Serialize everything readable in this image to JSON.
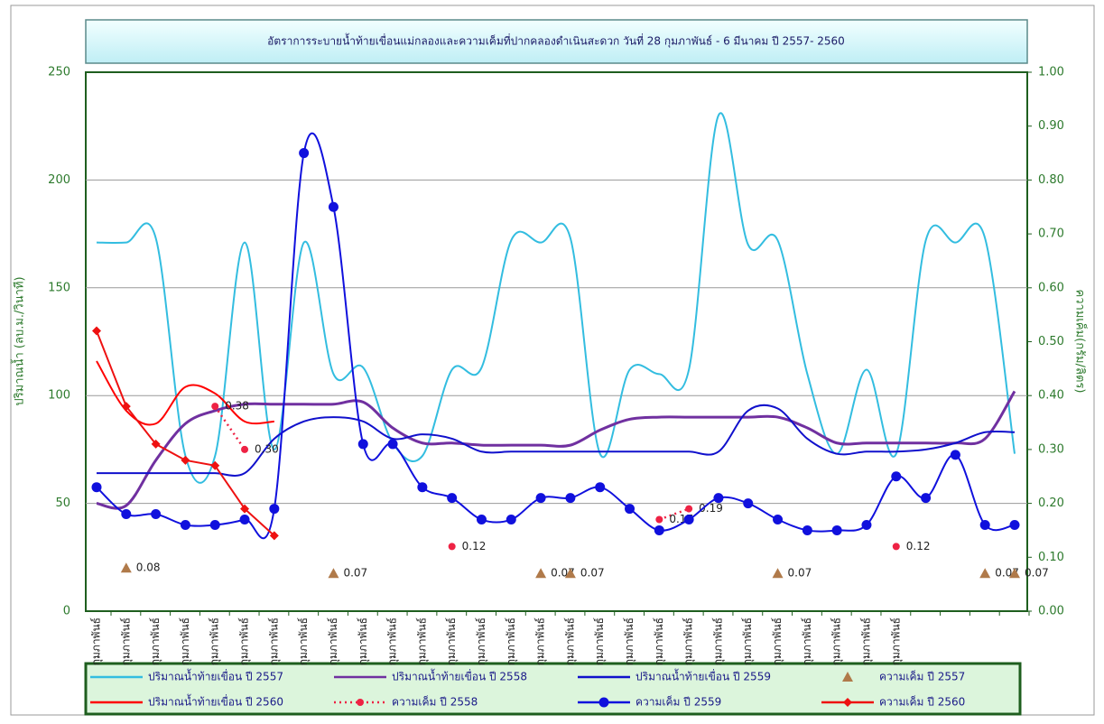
{
  "chart_data": {
    "type": "line",
    "title": "อัตราการระบายน้ำท้ายเขื่อนแม่กลองและความเค็มที่ปากคลองดำเนินสะดวก  วันที่  28  กุมภาพันธ์ - 6 มีนาคม  ปี 2557- 2560",
    "ylabel": "ปริมาณน้ำ (ลบ.ม./วินาที)",
    "y2label": "ความเค็ม(กรัม/ลิตร)",
    "categories": [
      "กุมภาพันธ์",
      "กุมภาพันธ์",
      "กุมภาพันธ์",
      "กุมภาพันธ์",
      "กุมภาพันธ์",
      "กุมภาพันธ์",
      "กุมภาพันธ์",
      "กุมภาพันธ์",
      "กุมภาพันธ์",
      "กุมภาพันธ์",
      "กุมภาพันธ์",
      "กุมภาพันธ์",
      "กุมภาพันธ์",
      "กุมภาพันธ์",
      "กุมภาพันธ์",
      "กุมภาพันธ์",
      "กุมภาพันธ์",
      "กุมภาพันธ์",
      "กุมภาพันธ์",
      "กุมภาพันธ์",
      "กุมภาพันธ์",
      "กุมภาพันธ์",
      "กุมภาพันธ์",
      "กุมภาพันธ์",
      "กุมภาพันธ์",
      "กุมภาพันธ์",
      "กุมภาพันธ์",
      "กุมภาพันธ์",
      null,
      null,
      null,
      null
    ],
    "ylim": [
      0,
      250
    ],
    "yticks": [
      0,
      50,
      100,
      150,
      200,
      250
    ],
    "y2lim": [
      0,
      1
    ],
    "y2ticks": [
      {
        "value": 0,
        "label": "0.00"
      },
      {
        "value": 0.1,
        "label": "0.10"
      },
      {
        "value": 0.2,
        "label": "0.20"
      },
      {
        "value": 0.3,
        "label": "0.30"
      },
      {
        "value": 0.4,
        "label": "0.40"
      },
      {
        "value": 0.5,
        "label": "0.50"
      },
      {
        "value": 0.6,
        "label": "0.60"
      },
      {
        "value": 0.7,
        "label": "0.70"
      },
      {
        "value": 0.8,
        "label": "0.80"
      },
      {
        "value": 0.9,
        "label": "0.90"
      },
      {
        "value": 1,
        "label": "1.00"
      }
    ],
    "grid": true,
    "series": [
      {
        "name": "ปริมาณน้ำท้ายเขื่อน ปี 2557",
        "color": "#33bde0",
        "axis": "y",
        "line": "smooth",
        "marker": "none",
        "values": [
          171,
          171,
          173,
          72,
          72,
          171,
          75,
          171,
          110,
          113,
          78,
          72,
          112,
          113,
          172,
          171,
          173,
          73,
          112,
          110,
          112,
          230,
          170,
          172,
          110,
          73,
          112,
          73,
          172,
          171,
          173,
          73
        ]
      },
      {
        "name": "ปริมาณน้ำท้ายเขื่อน ปี 2558",
        "color": "#7030a0",
        "axis": "y",
        "line": "smooth",
        "marker": "none",
        "values": [
          50,
          49,
          70,
          87,
          93,
          96,
          96,
          96,
          96,
          97,
          85,
          78,
          78,
          77,
          77,
          77,
          77,
          84,
          89,
          90,
          90,
          90,
          90,
          90,
          85,
          78,
          78,
          78,
          78,
          78,
          80,
          102
        ]
      },
      {
        "name": "ปริมาณน้ำท้ายเขื่อน ปี 2559",
        "color": "#1010cc",
        "axis": "y",
        "line": "smooth",
        "marker": "none",
        "values": [
          64,
          64,
          64,
          64,
          64,
          64,
          80,
          88,
          90,
          88,
          80,
          82,
          80,
          74,
          74,
          74,
          74,
          74,
          74,
          74,
          74,
          74,
          93,
          94,
          80,
          73,
          74,
          74,
          75,
          78,
          83,
          83
        ]
      },
      {
        "name": "ความเค็ม ปี 2557",
        "color": "#b07a4a",
        "axis": "y2",
        "line": "none",
        "marker": "triangle",
        "values": [
          null,
          0.08,
          null,
          null,
          null,
          null,
          null,
          null,
          0.07,
          null,
          null,
          null,
          null,
          null,
          null,
          0.07,
          0.07,
          null,
          null,
          null,
          null,
          null,
          null,
          0.07,
          null,
          null,
          null,
          null,
          null,
          null,
          0.07,
          0.07
        ]
      },
      {
        "name": "ปริมาณน้ำท้ายเขื่อน ปี 2560",
        "color": "#ff0000",
        "axis": "y",
        "line": "smooth",
        "marker": "none",
        "values": [
          116,
          93,
          87,
          104,
          101,
          88,
          88,
          null,
          null,
          null,
          null,
          null,
          null,
          null,
          null,
          null,
          null,
          null,
          null,
          null,
          null,
          null,
          null,
          null,
          null,
          null,
          null,
          null,
          null,
          null,
          null,
          null
        ]
      },
      {
        "name": "ความเค็ม ปี 2558",
        "color": "#ee2244",
        "axis": "y2",
        "line": "dotted",
        "marker": "dot",
        "values": [
          null,
          null,
          null,
          null,
          0.38,
          0.3,
          null,
          null,
          null,
          null,
          null,
          null,
          0.12,
          null,
          null,
          null,
          null,
          null,
          null,
          0.17,
          0.19,
          null,
          null,
          null,
          null,
          null,
          null,
          0.12,
          null,
          null,
          null,
          null
        ],
        "value_labels": [
          null,
          null,
          null,
          null,
          "0.38",
          "0.30",
          null,
          null,
          null,
          null,
          null,
          null,
          "0.12",
          null,
          null,
          null,
          null,
          null,
          null,
          "0.17",
          "0.19",
          null,
          null,
          null,
          null,
          null,
          null,
          "0.12",
          null,
          null,
          null,
          null
        ]
      },
      {
        "name": "ความเค็ม ปี 2559",
        "color": "#1010dd",
        "axis": "y2",
        "line": "smooth",
        "marker": "circle",
        "values": [
          0.23,
          0.18,
          0.18,
          0.16,
          0.16,
          0.17,
          0.19,
          0.85,
          0.75,
          0.31,
          0.31,
          0.23,
          0.21,
          0.17,
          0.17,
          0.21,
          0.21,
          0.23,
          0.19,
          0.15,
          0.17,
          0.21,
          0.2,
          0.17,
          0.15,
          0.15,
          0.16,
          0.25,
          0.21,
          0.29,
          0.16,
          0.16
        ]
      },
      {
        "name": "ความเค็ม ปี 2560",
        "color": "#ee1111",
        "axis": "y2",
        "line": "straight",
        "marker": "diamond",
        "values": [
          0.52,
          0.38,
          0.31,
          0.28,
          0.27,
          0.19,
          0.14,
          null,
          null,
          null,
          null,
          null,
          null,
          null,
          null,
          null,
          null,
          null,
          null,
          null,
          null,
          null,
          null,
          null,
          null,
          null,
          null,
          null,
          null,
          null,
          null,
          null
        ]
      }
    ]
  }
}
